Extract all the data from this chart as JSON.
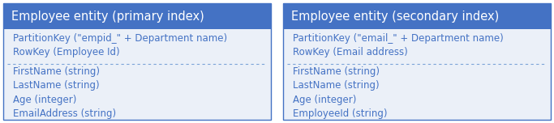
{
  "header_bg": "#4472C4",
  "header_text_color": "#FFFFFF",
  "body_bg": "#EBF0F8",
  "outer_bg": "#FFFFFF",
  "border_color": "#4472C4",
  "divider_color": "#7BA3D8",
  "body_text_color": "#4472C4",
  "panels": [
    {
      "title": "Employee entity (primary index)",
      "index_rows": [
        "PartitionKey (\"empid_\" + Department name)",
        "RowKey (Employee Id)"
      ],
      "data_rows": [
        "FirstName (string)",
        "LastName (string)",
        "Age (integer)",
        "EmailAddress (string)"
      ]
    },
    {
      "title": "Employee entity (secondary index)",
      "index_rows": [
        "PartitionKey (\"email_\" + Department name)",
        "RowKey (Email address)"
      ],
      "data_rows": [
        "FirstName (string)",
        "LastName (string)",
        "Age (integer)",
        "EmployeeId (string)"
      ]
    }
  ],
  "fig_width": 6.83,
  "fig_height": 1.52,
  "title_fontsize": 10.5,
  "body_fontsize": 8.5
}
